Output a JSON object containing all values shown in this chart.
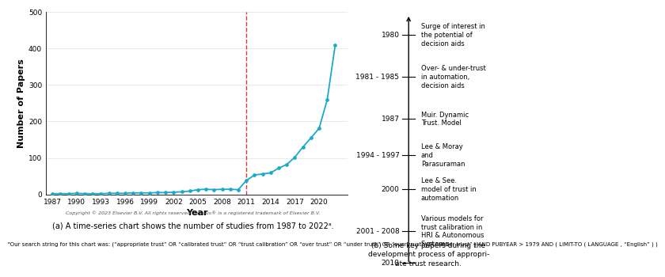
{
  "years": [
    1987,
    1988,
    1989,
    1990,
    1991,
    1992,
    1993,
    1994,
    1995,
    1996,
    1997,
    1998,
    1999,
    2000,
    2001,
    2002,
    2003,
    2004,
    2005,
    2006,
    2007,
    2008,
    2009,
    2010,
    2011,
    2012,
    2013,
    2014,
    2015,
    2016,
    2017,
    2018,
    2019,
    2020,
    2021,
    2022
  ],
  "values": [
    2,
    2,
    2,
    3,
    2,
    2,
    2,
    3,
    3,
    3,
    4,
    4,
    4,
    5,
    5,
    6,
    7,
    9,
    13,
    14,
    13,
    14,
    14,
    13,
    38,
    53,
    56,
    59,
    72,
    82,
    102,
    130,
    155,
    181,
    259,
    410
  ],
  "line_color": "#1aaac8",
  "marker_color": "#1aaac8",
  "vline_x": 2011,
  "vline_color": "#e83535",
  "xlabel": "Year",
  "ylabel": "Number of Papers",
  "ylim": [
    0,
    500
  ],
  "yticks": [
    0,
    100,
    200,
    300,
    400,
    500
  ],
  "xtick_years": [
    1987,
    1990,
    1993,
    1996,
    1999,
    2002,
    2005,
    2008,
    2011,
    2014,
    2017,
    2020
  ],
  "copyright_text": "Copyright © 2023 Elsevier B.V. All rights reserved. Scopus® is a registered trademark of Elsevier B.V.",
  "caption_a": "(a) A time-series chart shows the number of studies from 1987 to 2022ᵃ.",
  "footnote_a": "ᵃOur search string for this chart was: (“appropriate trust” OR “calibrated trust” OR “trust calibration” OR “over trust” OR “under trust” OR “over-trust” OR “under-trust” ) AND PUBYEAR > 1979 AND ( LIMIT-TO ( LANGUAGE , “English” ) )",
  "caption_b": "(b) Some key papers during the\ndevelopment process of appropri-\nate trust research.",
  "timeline_entries": [
    {
      "label": "1980",
      "y_frac": 0.895,
      "desc": "Surge of interest in\nthe potential of\ndecision aids"
    },
    {
      "label": "1981 - 1985",
      "y_frac": 0.735,
      "desc": "Over- & under-trust\nin automation,\ndecision aids"
    },
    {
      "label": "1987",
      "y_frac": 0.575,
      "desc": "Muir. Dynamic\nTrust. Model"
    },
    {
      "label": "1994 - 1997",
      "y_frac": 0.435,
      "desc": "Lee & Moray\nand\nParasuraman"
    },
    {
      "label": "2000",
      "y_frac": 0.305,
      "desc": "Lee & See.\nmodel of trust in\nautomation"
    },
    {
      "label": "2001 - 2008",
      "y_frac": 0.145,
      "desc": "Various models for\ntrust calibration in\nHRI & Autonomous\nSystems"
    },
    {
      "label": "2010",
      "y_frac": 0.025,
      "desc": ""
    }
  ]
}
